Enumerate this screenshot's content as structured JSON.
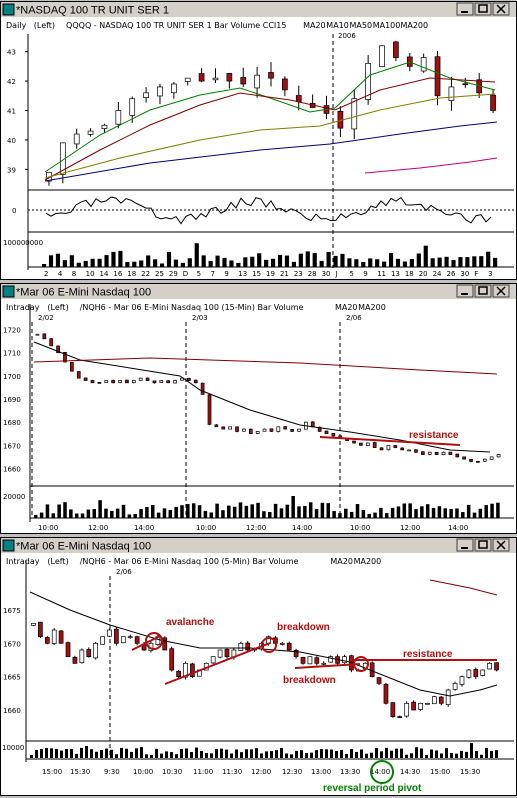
{
  "colors": {
    "up": "#ffffff",
    "down": "#a01010",
    "ma10": "#008000",
    "ma20": "#800000",
    "ma50": "#808000",
    "ma100": "#000080",
    "ma200": "#c00080",
    "anno": "#b01010",
    "pivot": "#008000"
  },
  "windows": [
    {
      "title": "*NASDAQ 100 TR UNIT SER 1",
      "legend": [
        {
          "t": "Daily",
          "c": "#000"
        },
        {
          "t": "(Left)",
          "c": "#000"
        },
        {
          "t": "QQQQ - NASDAQ 100 TR UNIT SER 1  Bar  Volume  CCI15",
          "c": "#000"
        },
        {
          "t": "MA20",
          "c": "#800000"
        },
        {
          "t": "MA10",
          "c": "#008000"
        },
        {
          "t": "MA50",
          "c": "#808000"
        },
        {
          "t": "MA100",
          "c": "#000080"
        },
        {
          "t": "MA200",
          "c": "#c00080"
        }
      ],
      "marker": "2006"
    },
    {
      "title": "*Mar 06  E-Mini Nasdaq 100",
      "legend": [
        {
          "t": "Intraday",
          "c": "#000"
        },
        {
          "t": "(Left)",
          "c": "#000"
        },
        {
          "t": "/NQH6 - Mar 06  E-Mini Nasdaq 100 (15-Min)  Bar  Volume",
          "c": "#000"
        },
        {
          "t": "MA20",
          "c": "#000"
        },
        {
          "t": "MA200",
          "c": "#800000"
        }
      ],
      "dates": [
        "2/02",
        "2/03",
        "2/06"
      ],
      "annotation": "resistance"
    },
    {
      "title": "*Mar 06  E-Mini Nasdaq 100",
      "legend": [
        {
          "t": "Intraday",
          "c": "#000"
        },
        {
          "t": "(Left)",
          "c": "#000"
        },
        {
          "t": "/NQH6 - Mar 06  E-Mini Nasdaq 100 (5-Min)  Bar  Volume",
          "c": "#000"
        },
        {
          "t": "MA20",
          "c": "#000"
        },
        {
          "t": "MA200",
          "c": "#800000"
        }
      ],
      "dates": [
        "2/06"
      ],
      "annotations": [
        "avalanche",
        "breakdown",
        "breakdown",
        "resistance",
        "reversal period pivot"
      ]
    }
  ],
  "chart_data": [
    {
      "type": "bar",
      "title": "QQQQ - NASDAQ 100 TR UNIT SER 1",
      "x": [
        "2",
        "4",
        "8",
        "10",
        "14",
        "16",
        "18",
        "22",
        "25",
        "29",
        "D",
        "5",
        "7",
        "9",
        "13",
        "15",
        "19",
        "21",
        "23",
        "28",
        "30",
        "J",
        "5",
        "9",
        "11",
        "13",
        "18",
        "20",
        "24",
        "26",
        "30",
        "F",
        "3"
      ],
      "y_ticks": [
        "43",
        "42",
        "41",
        "40",
        "39"
      ],
      "ylim": [
        38.4,
        43.6
      ],
      "osc_ticks": [
        "0"
      ],
      "volume_ticks": [
        "100000000"
      ],
      "close": [
        38.9,
        39.9,
        40.2,
        40.3,
        40.5,
        41.0,
        41.4,
        41.6,
        41.8,
        41.9,
        42.1,
        42.0,
        42.1,
        42.0,
        41.9,
        42.2,
        42.1,
        41.7,
        41.3,
        41.1,
        40.9,
        40.4,
        41.4,
        42.6,
        43.2,
        42.8,
        42.5,
        42.8,
        41.5,
        41.8,
        41.9,
        41.6,
        41.0
      ]
    },
    {
      "type": "bar",
      "title": "/NQH6 - Mar 06 E-Mini Nasdaq 100 (15-Min)",
      "x": [
        "10:00",
        "12:00",
        "14:00",
        "10:00",
        "12:00",
        "14:00",
        "10:00",
        "12:00",
        "14:00"
      ],
      "y_ticks": [
        "1720",
        "1710",
        "1700",
        "1690",
        "1680",
        "1670",
        "1660"
      ],
      "ylim": [
        1655,
        1725
      ],
      "volume_ticks": [
        "20000"
      ]
    },
    {
      "type": "bar",
      "title": "/NQH6 - Mar 06 E-Mini Nasdaq 100 (5-Min)",
      "x": [
        "15:00",
        "15:30",
        "9:30",
        "10:00",
        "10:30",
        "11:00",
        "11:30",
        "12:00",
        "12:30",
        "13:00",
        "13:30",
        "14:00",
        "14:30",
        "15:00",
        "15:30"
      ],
      "y_ticks": [
        "1675",
        "1670",
        "1665",
        "1660"
      ],
      "ylim": [
        1657,
        1678
      ],
      "volume_ticks": [
        "10000"
      ]
    }
  ]
}
